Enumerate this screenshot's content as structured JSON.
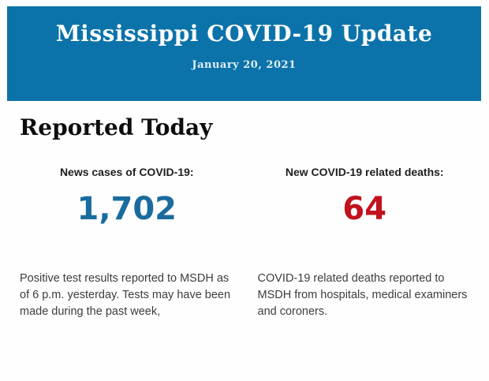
{
  "header": {
    "title": "Mississippi COVID-19 Update",
    "date": "January 20, 2021",
    "background_color": "#0b73aa",
    "title_color": "#ffffff"
  },
  "section": {
    "heading": "Reported Today"
  },
  "stats": [
    {
      "label": "News cases of COVID-19:",
      "value": "1,702",
      "value_color": "#1b6c9e",
      "description": "Positive test results reported to MSDH as of 6 p.m. yesterday. Tests may have been made during the past week,"
    },
    {
      "label": "New COVID-19 related deaths:",
      "value": "64",
      "value_color": "#c1121e",
      "description": "COVID-19 related deaths reported to MSDH from hospitals, medical examiners and coroners."
    }
  ]
}
